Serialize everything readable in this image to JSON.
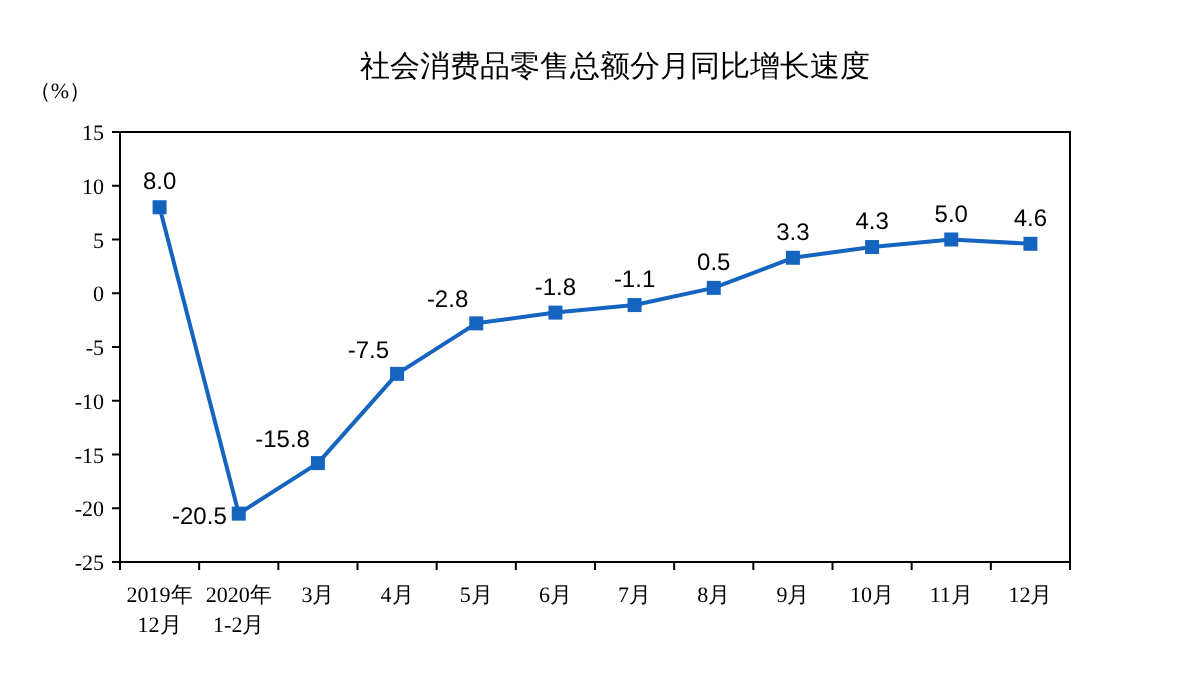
{
  "chart_data": {
    "type": "line",
    "title": "社会消费品零售总额分月同比增长速度",
    "ylabel": "（%）",
    "categories": [
      "2019年\n12月",
      "2020年\n1-2月",
      "3月",
      "4月",
      "5月",
      "6月",
      "7月",
      "8月",
      "9月",
      "10月",
      "11月",
      "12月"
    ],
    "series": [
      {
        "color": "#1565c0",
        "values": [
          8.0,
          -20.5,
          -15.8,
          -7.5,
          -2.8,
          -1.8,
          -1.1,
          0.5,
          3.3,
          4.3,
          5.0,
          4.6
        ],
        "value_labels": [
          "8.0",
          "-20.5",
          "-15.8",
          "-7.5",
          "-2.8",
          "-1.8",
          "-1.1",
          "0.5",
          "3.3",
          "4.3",
          "5.0",
          "4.6"
        ]
      }
    ],
    "ylim": [
      -25,
      15
    ],
    "yticks": [
      -25,
      -20,
      -15,
      -10,
      -5,
      0,
      5,
      10,
      15
    ],
    "grid": false,
    "marker": "square",
    "line_style": "solid"
  }
}
